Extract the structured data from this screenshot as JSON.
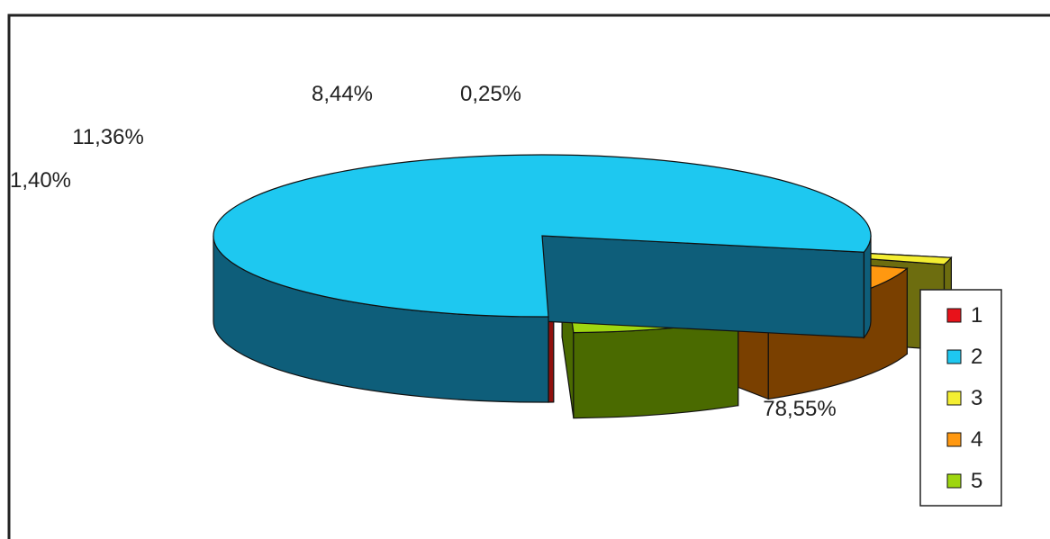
{
  "chart_data": {
    "type": "pie",
    "style": "3d-exploded",
    "title": "",
    "categories": [
      "1",
      "2",
      "3",
      "4",
      "5"
    ],
    "values": [
      0.25,
      78.55,
      1.4,
      11.36,
      8.44
    ],
    "labels": [
      "0,25%",
      "78,55%",
      "1,40%",
      "11,36%",
      "8,44%"
    ],
    "colors": [
      "#e8121a",
      "#1ec8f0",
      "#f4ee32",
      "#ff9810",
      "#9ed610"
    ],
    "side_colors": [
      "#90100e",
      "#0e5e7a",
      "#6d6d0f",
      "#7a4000",
      "#4a6a00"
    ],
    "legend": {
      "position": "right",
      "entries": [
        "1",
        "2",
        "3",
        "4",
        "5"
      ]
    }
  }
}
